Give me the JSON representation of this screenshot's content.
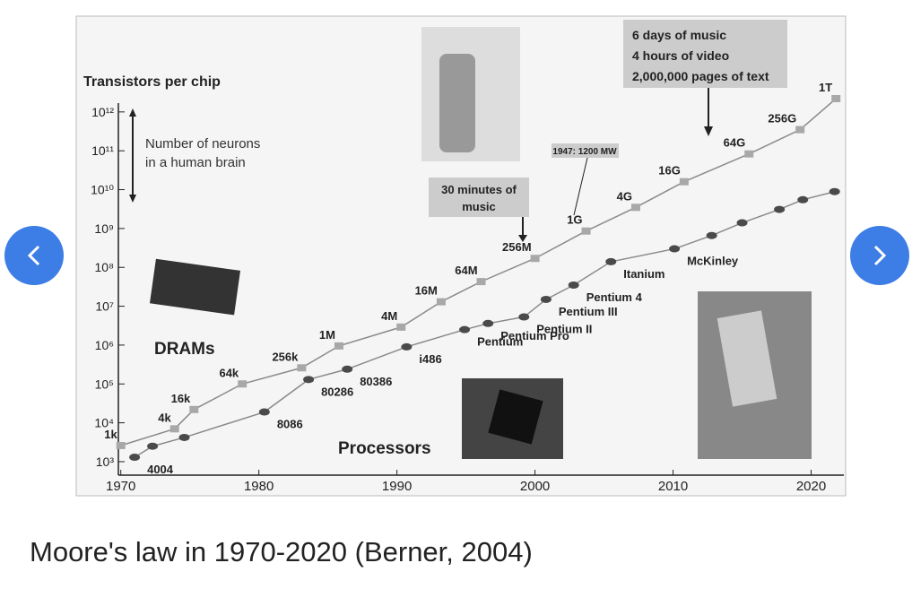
{
  "caption": "Moore's law in 1970-2020 (Berner, 2004)",
  "chart_data": {
    "type": "line",
    "log_scale": true,
    "ylabel": "Transistors per chip",
    "xlim": [
      1969.5,
      2022.5
    ],
    "xticks": [
      1970,
      1980,
      1990,
      2000,
      2010,
      2020
    ],
    "ylim": [
      450,
      2200000000000
    ],
    "yticks": [
      {
        "value": 1000,
        "label": "10³"
      },
      {
        "value": 10000,
        "label": "10⁴"
      },
      {
        "value": 100000,
        "label": "10⁵"
      },
      {
        "value": 1000000,
        "label": "10⁶"
      },
      {
        "value": 10000000,
        "label": "10⁷"
      },
      {
        "value": 100000000,
        "label": "10⁸"
      },
      {
        "value": 1000000000,
        "label": "10⁹"
      },
      {
        "value": 10000000000,
        "label": "10¹⁰"
      },
      {
        "value": 100000000000,
        "label": "10¹¹"
      },
      {
        "value": 1000000000000,
        "label": "10¹²"
      }
    ],
    "series": [
      {
        "color": "#a8a8a8",
        "marker": "square",
        "x": [
          1970,
          1973.9,
          1975.3,
          1978.8,
          1983.1,
          1985.8,
          1990.3,
          1993.2,
          1996.1,
          2000,
          2003.7,
          2007.3,
          2010.8,
          2015.5,
          2019.2,
          2021.8
        ],
        "values": [
          2600,
          7000,
          22000,
          100000,
          260000,
          950000,
          2900000,
          13000000,
          43000000,
          170000000,
          860000000,
          3500000000,
          16000000000,
          83000000000,
          350000000000,
          2200000000000
        ],
        "point_labels": [
          "1k",
          "4k",
          "16k",
          "64k",
          "256k",
          "1M",
          "4M",
          "16M",
          "64M",
          "256M",
          "1G",
          "4G",
          "16G",
          "64G",
          "256G",
          "1T"
        ]
      },
      {
        "color": "#4a4a4a",
        "marker": "ellipse",
        "x": [
          1971,
          1972.3,
          1974.6,
          1980.4,
          1983.6,
          1986.4,
          1990.7,
          1994.9,
          1996.6,
          1999.2,
          2000.8,
          2002.8,
          2005.5,
          2010.1,
          2012.8,
          2015,
          2017.7,
          2019.4,
          2021.7
        ],
        "values": [
          1300,
          2500,
          4200,
          19000,
          130000,
          240000,
          900000,
          2500000,
          3600000,
          5300000,
          15000000,
          35000000,
          140000000,
          300000000,
          660000000,
          1400000000,
          3100000000,
          5500000000,
          8900000000
        ],
        "point_labels": [
          "4004",
          null,
          null,
          "8086",
          "80286",
          "80386",
          "i486",
          "Pentium",
          "Pentium Pro",
          "Pentium II",
          "Pentium III",
          "Pentium 4",
          "Itanium",
          "McKinley",
          null,
          null,
          null,
          null,
          null
        ]
      }
    ],
    "annotations": [
      "Number of neurons",
      "in a human brain",
      "DRAMs",
      "Processors",
      "30 minutes of",
      "music",
      "1947: 1200 MW",
      "6 days of music",
      "4 hours of video",
      "2,000,000 pages of text"
    ]
  }
}
